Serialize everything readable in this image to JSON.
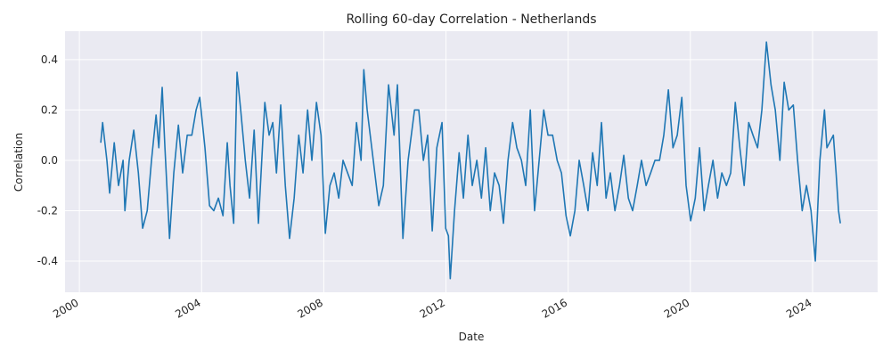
{
  "chart_data": {
    "type": "line",
    "title": "Rolling 60-day Correlation - Netherlands",
    "x_label": "Date",
    "y_label": "Correlation",
    "x": [
      2000.7,
      2000.76,
      2000.9,
      2000.99,
      2001.14,
      2001.28,
      2001.43,
      2001.49,
      2001.63,
      2001.78,
      2001.93,
      2002.07,
      2002.22,
      2002.36,
      2002.51,
      2002.6,
      2002.71,
      2002.8,
      2002.95,
      2003.09,
      2003.24,
      2003.38,
      2003.53,
      2003.68,
      2003.82,
      2003.94,
      2004.11,
      2004.26,
      2004.4,
      2004.55,
      2004.7,
      2004.84,
      2004.93,
      2005.05,
      2005.16,
      2005.28,
      2005.43,
      2005.57,
      2005.72,
      2005.86,
      2006.07,
      2006.21,
      2006.33,
      2006.45,
      2006.59,
      2006.74,
      2006.88,
      2007.03,
      2007.18,
      2007.32,
      2007.47,
      2007.61,
      2007.76,
      2007.91,
      2008.05,
      2008.2,
      2008.34,
      2008.49,
      2008.63,
      2008.78,
      2008.93,
      2009.07,
      2009.22,
      2009.31,
      2009.42,
      2009.57,
      2009.8,
      2009.95,
      2010.12,
      2010.3,
      2010.41,
      2010.59,
      2010.76,
      2010.97,
      2011.11,
      2011.26,
      2011.4,
      2011.55,
      2011.7,
      2011.87,
      2011.99,
      2012.08,
      2012.14,
      2012.28,
      2012.43,
      2012.57,
      2012.72,
      2012.86,
      2013.01,
      2013.16,
      2013.3,
      2013.45,
      2013.59,
      2013.74,
      2013.88,
      2014.03,
      2014.18,
      2014.32,
      2014.47,
      2014.61,
      2014.76,
      2014.9,
      2015.05,
      2015.2,
      2015.34,
      2015.49,
      2015.64,
      2015.78,
      2015.93,
      2016.07,
      2016.22,
      2016.36,
      2016.51,
      2016.65,
      2016.8,
      2016.95,
      2017.09,
      2017.24,
      2017.38,
      2017.53,
      2017.68,
      2017.82,
      2017.97,
      2018.11,
      2018.26,
      2018.4,
      2018.55,
      2018.7,
      2018.84,
      2018.99,
      2019.13,
      2019.28,
      2019.43,
      2019.57,
      2019.72,
      2019.86,
      2020.01,
      2020.16,
      2020.3,
      2020.45,
      2020.59,
      2020.74,
      2020.89,
      2021.03,
      2021.18,
      2021.32,
      2021.47,
      2021.62,
      2021.76,
      2021.91,
      2022.05,
      2022.2,
      2022.34,
      2022.49,
      2022.64,
      2022.78,
      2022.93,
      2023.07,
      2023.22,
      2023.37,
      2023.51,
      2023.66,
      2023.8,
      2023.95,
      2024.09,
      2024.24,
      2024.39,
      2024.47,
      2024.68,
      2024.77,
      2024.85,
      2024.91
    ],
    "series": [
      {
        "name": "Correlation",
        "color": "#1f77b4",
        "values": [
          0.07,
          0.15,
          0.0,
          -0.13,
          0.07,
          -0.1,
          0.0,
          -0.2,
          0.0,
          0.12,
          -0.05,
          -0.27,
          -0.2,
          0.0,
          0.18,
          0.05,
          0.29,
          0.05,
          -0.31,
          -0.05,
          0.14,
          -0.05,
          0.1,
          0.1,
          0.2,
          0.25,
          0.05,
          -0.18,
          -0.2,
          -0.15,
          -0.22,
          0.07,
          -0.1,
          -0.25,
          0.35,
          0.2,
          0.0,
          -0.15,
          0.12,
          -0.25,
          0.23,
          0.1,
          0.15,
          -0.05,
          0.22,
          -0.1,
          -0.31,
          -0.15,
          0.1,
          -0.05,
          0.2,
          0.0,
          0.23,
          0.1,
          -0.29,
          -0.1,
          -0.05,
          -0.15,
          0.0,
          -0.05,
          -0.1,
          0.15,
          0.0,
          0.36,
          0.2,
          0.05,
          -0.18,
          -0.1,
          0.3,
          0.1,
          0.3,
          -0.31,
          0.0,
          0.2,
          0.2,
          0.0,
          0.1,
          -0.28,
          0.05,
          0.15,
          -0.27,
          -0.3,
          -0.47,
          -0.2,
          0.03,
          -0.15,
          0.1,
          -0.1,
          0.0,
          -0.15,
          0.05,
          -0.2,
          -0.05,
          -0.1,
          -0.25,
          0.0,
          0.15,
          0.05,
          0.0,
          -0.1,
          0.2,
          -0.2,
          0.0,
          0.2,
          0.1,
          0.1,
          0.0,
          -0.05,
          -0.22,
          -0.3,
          -0.2,
          0.0,
          -0.1,
          -0.2,
          0.03,
          -0.1,
          0.15,
          -0.15,
          -0.05,
          -0.2,
          -0.1,
          0.02,
          -0.15,
          -0.2,
          -0.1,
          0.0,
          -0.1,
          -0.05,
          0.0,
          0.0,
          0.1,
          0.28,
          0.05,
          0.1,
          0.25,
          -0.1,
          -0.24,
          -0.15,
          0.05,
          -0.2,
          -0.1,
          0.0,
          -0.15,
          -0.05,
          -0.1,
          -0.05,
          0.23,
          0.05,
          -0.1,
          0.15,
          0.1,
          0.05,
          0.2,
          0.47,
          0.3,
          0.2,
          0.0,
          0.31,
          0.2,
          0.22,
          0.0,
          -0.2,
          -0.1,
          -0.2,
          -0.4,
          0.0,
          0.2,
          0.05,
          0.1,
          -0.05,
          -0.2,
          -0.25
        ]
      }
    ],
    "xlim": [
      1999.53,
      2026.13
    ],
    "xticks": [
      2000,
      2004,
      2008,
      2012,
      2016,
      2020,
      2024
    ],
    "ylim": [
      -0.524,
      0.513
    ],
    "yticks": [
      -0.4,
      -0.2,
      {
        "value": 0,
        "label": "0.0"
      },
      0.2,
      0.4
    ],
    "grid": true
  }
}
